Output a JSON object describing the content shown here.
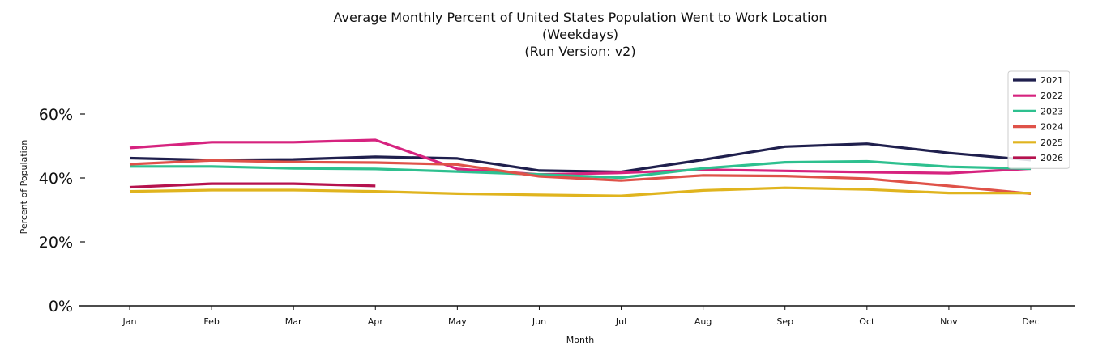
{
  "chart_data": {
    "type": "line",
    "title_lines": [
      "Average Monthly Percent of United States Population Went to Work Location",
      "(Weekdays)",
      "(Run Version: v2)"
    ],
    "xlabel": "Month",
    "ylabel": "Percent of Population",
    "categories": [
      "Jan",
      "Feb",
      "Mar",
      "Apr",
      "May",
      "Jun",
      "Jul",
      "Aug",
      "Sep",
      "Oct",
      "Nov",
      "Dec"
    ],
    "ylim": [
      0,
      60
    ],
    "yticks": [
      0,
      20,
      40,
      60
    ],
    "ytick_labels": [
      "0%",
      "20%",
      "40%",
      "60%"
    ],
    "grid": false,
    "legend_position": "top-right",
    "series": [
      {
        "name": "2021",
        "color": "#1f1f4d",
        "values": [
          46.2,
          45.6,
          45.8,
          46.6,
          46.1,
          42.3,
          41.9,
          45.7,
          49.8,
          50.7,
          47.8,
          45.6
        ]
      },
      {
        "name": "2022",
        "color": "#d6237f",
        "values": [
          49.4,
          51.2,
          51.2,
          51.9,
          42.8,
          41.1,
          41.6,
          42.6,
          42.2,
          41.8,
          41.5,
          42.9
        ]
      },
      {
        "name": "2023",
        "color": "#2ec08f",
        "values": [
          43.6,
          43.6,
          43.0,
          42.8,
          42.0,
          41.1,
          40.1,
          43.0,
          44.9,
          45.2,
          43.5,
          42.9
        ]
      },
      {
        "name": "2024",
        "color": "#df5249",
        "values": [
          44.3,
          45.5,
          45.0,
          44.8,
          44.2,
          40.5,
          39.2,
          40.8,
          40.6,
          39.8,
          37.5,
          35.1
        ]
      },
      {
        "name": "2025",
        "color": "#e0b41e",
        "values": [
          35.8,
          36.2,
          36.2,
          35.8,
          35.1,
          34.7,
          34.4,
          36.1,
          36.9,
          36.4,
          35.3,
          35.3
        ]
      },
      {
        "name": "2026",
        "color": "#b5124e",
        "values": [
          37.1,
          38.2,
          38.2,
          37.5,
          null,
          null,
          null,
          null,
          null,
          null,
          null,
          null
        ]
      }
    ]
  }
}
